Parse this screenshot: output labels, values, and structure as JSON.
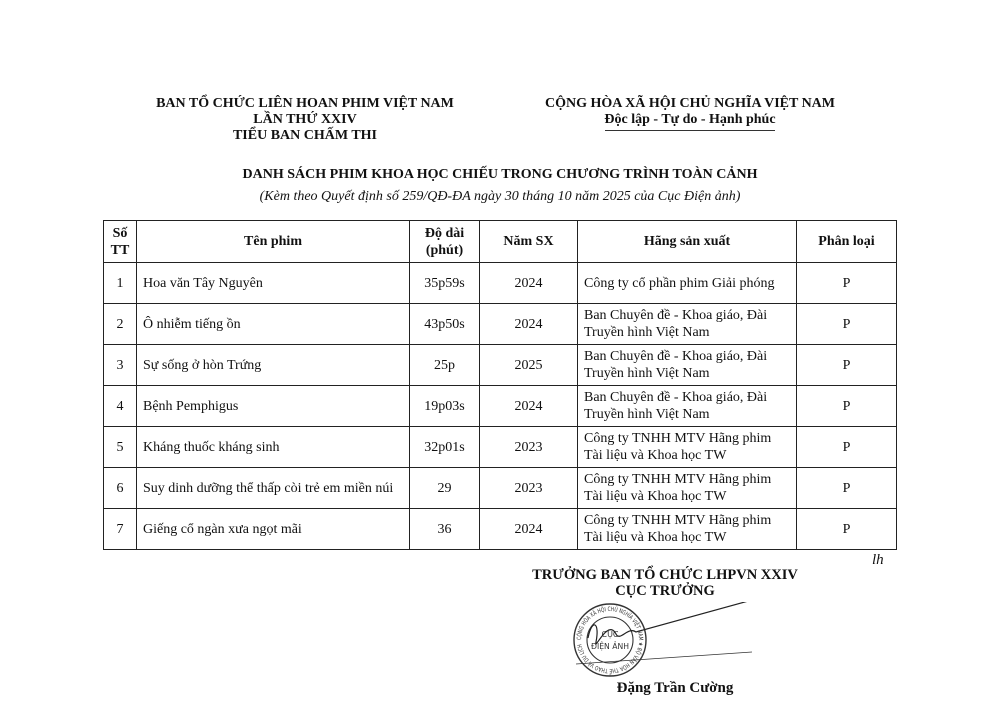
{
  "header_left": [
    "BAN TỔ CHỨC LIÊN HOAN PHIM VIỆT NAM",
    "LẦN THỨ XXIV",
    "TIỂU BAN CHẤM THI"
  ],
  "header_right": {
    "country": "CỘNG HÒA XÃ HỘI CHỦ NGHĨA VIỆT NAM",
    "motto": "Độc lập - Tự do - Hạnh phúc"
  },
  "title": "DANH SÁCH PHIM KHOA HỌC CHIẾU TRONG CHƯƠNG TRÌNH TOÀN CẢNH",
  "subtitle": "(Kèm theo Quyết định số 259/QĐ-ĐA ngày 30 tháng 10 năm 2025 của Cục Điện ảnh)",
  "table": {
    "headers": {
      "stt_1": "Số",
      "stt_2": "TT",
      "name": "Tên phim",
      "len_1": "Độ dài",
      "len_2": "(phút)",
      "year": "Năm SX",
      "producer": "Hãng sản xuất",
      "type": "Phân loại"
    },
    "rows": [
      {
        "stt": "1",
        "name": "Hoa văn Tây Nguyên",
        "length": "35p59s",
        "year": "2024",
        "producer": "Công ty cổ phần phim Giải phóng",
        "type": "P"
      },
      {
        "stt": "2",
        "name": "Ô nhiễm tiếng ồn",
        "length": "43p50s",
        "year": "2024",
        "producer": "Ban Chuyên đề - Khoa giáo, Đài Truyền hình Việt Nam",
        "type": "P"
      },
      {
        "stt": "3",
        "name": "Sự sống ở hòn Trứng",
        "length": "25p",
        "year": "2025",
        "producer": "Ban Chuyên đề - Khoa giáo, Đài Truyền hình Việt Nam",
        "type": "P"
      },
      {
        "stt": "4",
        "name": "Bệnh Pemphigus",
        "length": "19p03s",
        "year": "2024",
        "producer": "Ban Chuyên đề - Khoa giáo, Đài Truyền hình Việt Nam",
        "type": "P"
      },
      {
        "stt": "5",
        "name": "Kháng thuốc kháng sinh",
        "length": "32p01s",
        "year": "2023",
        "producer": "Công ty TNHH MTV Hãng phim Tài liệu và Khoa học TW",
        "type": "P"
      },
      {
        "stt": "6",
        "name": "Suy dinh dưỡng thể thấp còi trẻ em miền núi",
        "length": "29",
        "year": "2023",
        "producer": "Công ty TNHH MTV Hãng phim Tài liệu và Khoa học TW",
        "type": "P"
      },
      {
        "stt": "7",
        "name": "Giếng cổ ngàn xưa ngọt mãi",
        "length": "36",
        "year": "2024",
        "producer": "Công ty TNHH MTV Hãng phim Tài liệu và Khoa học TW",
        "type": "P"
      }
    ]
  },
  "signature": {
    "position_1": "TRƯỞNG BAN TỔ CHỨC LHPVN XXIV",
    "position_2": "CỤC TRƯỞNG",
    "name": "Đặng Trần Cường",
    "initials": "lh"
  },
  "stamp": {
    "ring": "CỘNG HÒA XÃ HỘI CHỦ NGHĨA VIỆT NAM ★ BỘ VĂN HÓA THỂ THAO VÀ DU LỊCH",
    "center_1": "CỤC",
    "center_2": "ĐIỆN ẢNH"
  }
}
